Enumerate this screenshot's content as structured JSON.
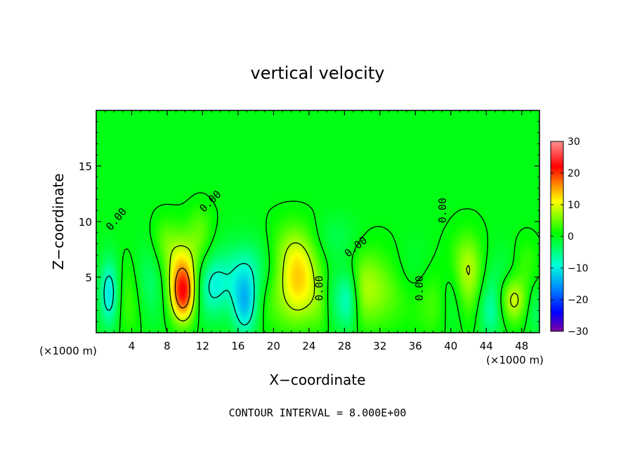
{
  "chart_data": {
    "type": "heatmap",
    "title": "vertical velocity",
    "xlabel": "X−coordinate",
    "ylabel": "Z−coordinate",
    "x_unit_left": "(×1000 m)",
    "x_unit_right": "(×1000 m)",
    "xlim": [
      0,
      50
    ],
    "ylim": [
      0,
      20
    ],
    "x_ticks": [
      4,
      8,
      12,
      16,
      20,
      24,
      28,
      32,
      36,
      40,
      44,
      48
    ],
    "y_ticks": [
      5,
      10,
      15
    ],
    "x_tick_labels": [
      "4",
      "8",
      "12",
      "16",
      "20",
      "24",
      "28",
      "32",
      "36",
      "40",
      "44",
      "48"
    ],
    "y_tick_labels": [
      "5",
      "10",
      "15"
    ],
    "colorbar": {
      "min": -30,
      "max": 30,
      "ticks": [
        30,
        20,
        10,
        0,
        -10,
        -20,
        -30
      ],
      "tick_labels": [
        "30",
        "20",
        "10",
        "0",
        "−10",
        "−20",
        "−30"
      ],
      "stops": [
        {
          "v": -30,
          "color": "#8000a0"
        },
        {
          "v": -24,
          "color": "#0000ff"
        },
        {
          "v": -16,
          "color": "#0090ff"
        },
        {
          "v": -9,
          "color": "#00ffd8"
        },
        {
          "v": -3,
          "color": "#00ff50"
        },
        {
          "v": 1,
          "color": "#00ff00"
        },
        {
          "v": 6,
          "color": "#80ff00"
        },
        {
          "v": 11,
          "color": "#ffff00"
        },
        {
          "v": 16,
          "color": "#ff9000"
        },
        {
          "v": 22,
          "color": "#ff0000"
        },
        {
          "v": 30,
          "color": "#ff9090"
        }
      ]
    },
    "contour_interval_text": "CONTOUR INTERVAL = 8.000E+00",
    "contour_labels": [
      {
        "text": "0.00",
        "x": 2.3,
        "z": 10.2,
        "angle": -50
      },
      {
        "text": "0.00",
        "x": 12.9,
        "z": 11.8,
        "angle": -45
      },
      {
        "text": "0.00",
        "x": 25.2,
        "z": 4.0,
        "angle": -90
      },
      {
        "text": "0.00",
        "x": 29.3,
        "z": 7.7,
        "angle": -40
      },
      {
        "text": "0.00",
        "x": 36.5,
        "z": 4.0,
        "angle": -90
      },
      {
        "text": "0.00",
        "x": 39.1,
        "z": 11.0,
        "angle": -90
      }
    ],
    "features": [
      {
        "x": 1.5,
        "z": 3.5,
        "w": -12,
        "sx": 0.8,
        "sz": 2.2
      },
      {
        "x": 3.5,
        "z": 3.0,
        "w": 4,
        "sx": 1.5,
        "sz": 2.5
      },
      {
        "x": 6.0,
        "z": 4.5,
        "w": -5,
        "sx": 1.2,
        "sz": 2.5
      },
      {
        "x": 7.5,
        "z": 8.5,
        "w": 3,
        "sx": 1.0,
        "sz": 1.5
      },
      {
        "x": 9.8,
        "z": 3.5,
        "w": 20,
        "sx": 1.0,
        "sz": 1.8
      },
      {
        "x": 9.5,
        "z": 6.5,
        "w": 8,
        "sx": 1.5,
        "sz": 2.0
      },
      {
        "x": 11.8,
        "z": 9.0,
        "w": 4,
        "sx": 1.0,
        "sz": 2.0
      },
      {
        "x": 13.0,
        "z": 4.0,
        "w": -7,
        "sx": 1.3,
        "sz": 2.0
      },
      {
        "x": 16.8,
        "z": 2.5,
        "w": -12,
        "sx": 1.0,
        "sz": 2.0
      },
      {
        "x": 15.0,
        "z": 5.0,
        "w": -4,
        "sx": 2.0,
        "sz": 2.0
      },
      {
        "x": 18.0,
        "z": 6.0,
        "w": -5,
        "sx": 2.0,
        "sz": 2.0
      },
      {
        "x": 20.5,
        "z": 3.5,
        "w": 4,
        "sx": 2.0,
        "sz": 2.5
      },
      {
        "x": 23.0,
        "z": 4.5,
        "w": 10,
        "sx": 1.5,
        "sz": 2.5
      },
      {
        "x": 22.0,
        "z": 7.5,
        "w": 5,
        "sx": 2.0,
        "sz": 2.0
      },
      {
        "x": 25.5,
        "z": 2.5,
        "w": 4,
        "sx": 1.0,
        "sz": 2.0
      },
      {
        "x": 26.8,
        "z": 3.0,
        "w": -5,
        "sx": 1.0,
        "sz": 2.0
      },
      {
        "x": 28.5,
        "z": 3.0,
        "w": -9,
        "sx": 0.8,
        "sz": 2.0
      },
      {
        "x": 27.0,
        "z": 8.5,
        "w": -3,
        "sx": 2.0,
        "sz": 1.5
      },
      {
        "x": 30.0,
        "z": 4.0,
        "w": 6,
        "sx": 1.5,
        "sz": 2.5
      },
      {
        "x": 33.0,
        "z": 4.0,
        "w": 5,
        "sx": 2.0,
        "sz": 2.5
      },
      {
        "x": 35.5,
        "z": 5.5,
        "w": -3,
        "sx": 2.0,
        "sz": 2.0
      },
      {
        "x": 38.0,
        "z": 3.0,
        "w": 4,
        "sx": 1.5,
        "sz": 2.5
      },
      {
        "x": 40.2,
        "z": 3.5,
        "w": -4,
        "sx": 1.0,
        "sz": 2.5
      },
      {
        "x": 42.0,
        "z": 4.5,
        "w": 6,
        "sx": 1.2,
        "sz": 2.5
      },
      {
        "x": 41.5,
        "z": 6.5,
        "w": 4,
        "sx": 1.5,
        "sz": 2.0
      },
      {
        "x": 44.5,
        "z": 2.0,
        "w": -7,
        "sx": 1.0,
        "sz": 1.8
      },
      {
        "x": 45.5,
        "z": 5.0,
        "w": -3,
        "sx": 1.5,
        "sz": 2.0
      },
      {
        "x": 47.0,
        "z": 3.0,
        "w": 10,
        "sx": 1.2,
        "sz": 1.5
      },
      {
        "x": 48.5,
        "z": 6.5,
        "w": 3,
        "sx": 1.0,
        "sz": 1.5
      },
      {
        "x": 49.5,
        "z": 2.0,
        "w": -4,
        "sx": 0.8,
        "sz": 1.5
      }
    ]
  }
}
